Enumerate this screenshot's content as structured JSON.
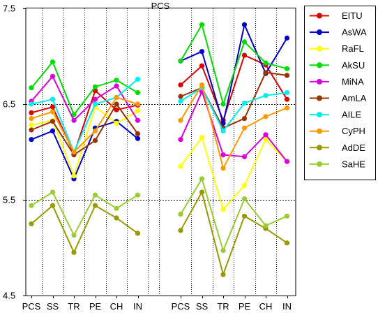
{
  "chart_data": {
    "type": "line",
    "title": "PCS",
    "xlabel": "",
    "ylabel": "",
    "ylim": [
      4.5,
      7.5
    ],
    "y_ticks": [
      "4.5",
      "5.5",
      "6.5",
      "7.5"
    ],
    "dashed_gridlines_at": [
      5.5,
      6.5
    ],
    "legend_position": "right",
    "groups": [
      {
        "categories": [
          "PCS",
          "SS",
          "TR",
          "PE",
          "CH",
          "IN"
        ]
      },
      {
        "categories": [
          "PCS",
          "SS",
          "TR",
          "PE",
          "CH",
          "IN"
        ]
      }
    ],
    "series": [
      {
        "name": "EITU",
        "color": "#dd0000",
        "group1": [
          6.41,
          6.47,
          5.98,
          6.64,
          6.44,
          6.49
        ],
        "group2": [
          6.7,
          6.9,
          6.33,
          7.01,
          6.91,
          6.55
        ]
      },
      {
        "name": "AsWA",
        "color": "#0000cc",
        "group1": [
          6.13,
          6.22,
          5.72,
          6.25,
          6.32,
          6.14
        ],
        "group2": [
          6.95,
          7.05,
          6.3,
          7.33,
          6.82,
          7.19
        ]
      },
      {
        "name": "RaFL",
        "color": "#ffff00",
        "group1": [
          6.28,
          6.33,
          5.75,
          6.47,
          6.3,
          6.43
        ],
        "group2": [
          5.85,
          6.15,
          5.4,
          5.65,
          6.13,
          5.9
        ]
      },
      {
        "name": "AkSU",
        "color": "#00dd00",
        "group1": [
          6.67,
          6.94,
          6.39,
          6.68,
          6.75,
          6.62
        ],
        "group2": [
          6.95,
          7.33,
          6.5,
          7.15,
          6.93,
          6.87
        ]
      },
      {
        "name": "MiNA",
        "color": "#dd00dd",
        "group1": [
          6.53,
          6.79,
          6.33,
          6.55,
          6.69,
          6.33
        ],
        "group2": [
          6.13,
          6.63,
          5.97,
          5.95,
          6.18,
          5.9
        ]
      },
      {
        "name": "AmLA",
        "color": "#993300",
        "group1": [
          6.23,
          6.32,
          5.97,
          6.12,
          6.5,
          6.19
        ],
        "group2": [
          6.58,
          6.67,
          6.25,
          6.35,
          6.83,
          6.8
        ]
      },
      {
        "name": "AILE",
        "color": "#00eeee",
        "group1": [
          6.5,
          6.55,
          6.0,
          6.5,
          6.57,
          6.76
        ],
        "group2": [
          6.53,
          6.67,
          6.22,
          6.51,
          6.59,
          6.62
        ]
      },
      {
        "name": "CyPH",
        "color": "#ff9900",
        "group1": [
          6.35,
          6.42,
          6.0,
          6.22,
          6.57,
          6.5
        ],
        "group2": [
          6.33,
          6.7,
          5.83,
          6.25,
          6.37,
          6.46
        ]
      },
      {
        "name": "AdDE",
        "color": "#999900",
        "group1": [
          5.25,
          5.44,
          4.95,
          5.44,
          5.31,
          5.15
        ],
        "group2": [
          5.18,
          5.58,
          4.72,
          5.33,
          5.2,
          5.05
        ]
      },
      {
        "name": "SaHE",
        "color": "#99cc33",
        "group1": [
          5.44,
          5.58,
          5.13,
          5.55,
          5.41,
          5.55
        ],
        "group2": [
          5.35,
          5.72,
          4.97,
          5.51,
          5.23,
          5.33
        ]
      }
    ]
  }
}
